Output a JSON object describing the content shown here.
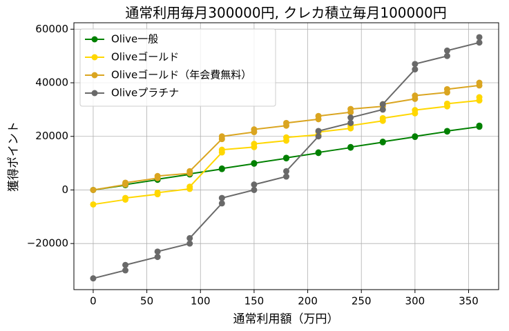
{
  "chart_data": {
    "type": "line",
    "title": "通常利用毎月300000円, クレカ積立毎月100000円",
    "x_label": "通常利用額（万円）",
    "y_label": "獲得ポイント",
    "x": [
      0,
      30,
      30,
      60,
      60,
      90,
      90,
      120,
      120,
      150,
      150,
      180,
      180,
      210,
      210,
      240,
      240,
      270,
      270,
      300,
      300,
      330,
      330,
      360,
      360
    ],
    "series": [
      {
        "name": "Olive一般",
        "color": "#008000",
        "values": [
          0,
          1800,
          2000,
          3800,
          4000,
          5800,
          6000,
          7800,
          8000,
          9800,
          10000,
          11800,
          12000,
          13800,
          14000,
          15800,
          16000,
          17800,
          18000,
          19800,
          20000,
          21800,
          22000,
          23600,
          24000
        ]
      },
      {
        "name": "Oliveゴールド",
        "color": "#ffd700",
        "values": [
          -5400,
          -3600,
          -3000,
          -1600,
          -1000,
          400,
          1200,
          14000,
          15000,
          16000,
          17200,
          18400,
          19600,
          20600,
          21600,
          23000,
          24000,
          25800,
          26800,
          28600,
          29800,
          31200,
          32200,
          33400,
          34600
        ]
      },
      {
        "name": "Oliveゴールド（年会費無料）",
        "color": "#daa520",
        "values": [
          0,
          2000,
          2700,
          4400,
          5200,
          6200,
          7000,
          19000,
          20000,
          21600,
          22600,
          24000,
          25000,
          26400,
          27600,
          29000,
          30200,
          31200,
          32000,
          34000,
          35200,
          36400,
          37600,
          39000,
          40000
        ]
      },
      {
        "name": "Oliveプラチナ",
        "color": "#696969",
        "values": [
          -33000,
          -30000,
          -28000,
          -25000,
          -23000,
          -20000,
          -18000,
          -5000,
          -3000,
          0,
          2000,
          5000,
          7000,
          20000,
          22000,
          25000,
          27000,
          30000,
          32000,
          45000,
          47000,
          50000,
          52000,
          55000,
          57000
        ]
      }
    ],
    "xlim": [
      -18,
      378
    ],
    "ylim": [
      -37200,
      62400
    ],
    "xticks": [
      0,
      50,
      100,
      150,
      200,
      250,
      300,
      350
    ],
    "yticks": [
      {
        "value": -20000,
        "label": "−20000"
      },
      0,
      20000,
      40000,
      60000
    ],
    "grid": true,
    "legend": "upper left"
  }
}
